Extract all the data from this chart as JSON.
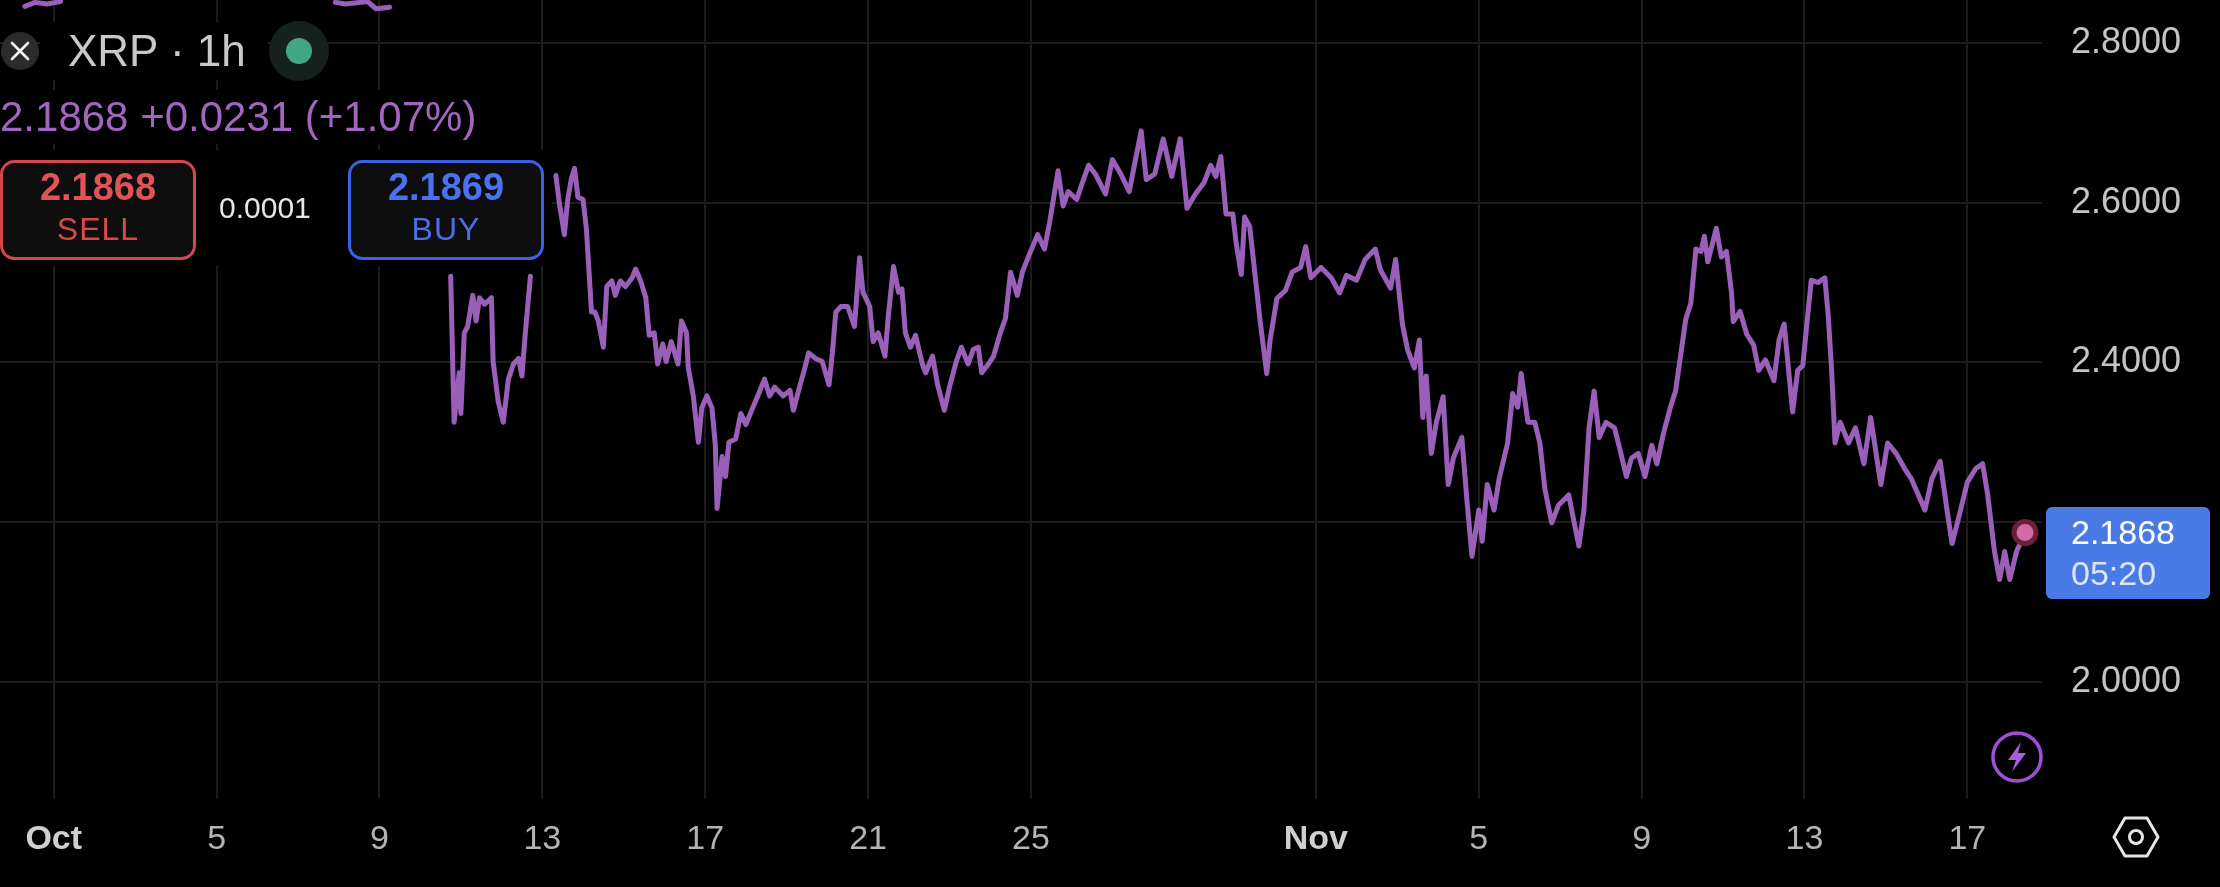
{
  "chart_data": {
    "type": "line",
    "title": "XRP · 1h",
    "subtitle": "2.1868 +0.0231 (+1.07%)",
    "x": [
      "--09-30T07:00",
      "--09-30T13:00",
      "--09-30T20:00",
      "--10-01T04:00",
      "--10-02T00:00",
      "--10-07T22:00",
      "--10-08T04:00",
      "--10-08T17:00",
      "--10-08T22:00",
      "--10-09T06:00",
      "--10-10T00:00",
      "--10-10T18:00",
      "--10-10T20:00",
      "--10-10T23:00",
      "--10-11T00:00",
      "--10-11T02:00",
      "--10-11T04:00",
      "--10-11T07:00",
      "--10-11T09:00",
      "--10-11T11:00",
      "--10-11T14:00",
      "--10-11T18:00",
      "--10-11T19:00",
      "--10-11T22:00",
      "--10-12T01:00",
      "--10-12T04:00",
      "--10-12T07:00",
      "--10-12T10:00",
      "--10-12T12:00",
      "--10-12T14:00",
      "--10-12T17:00",
      "--10-12T21:00",
      "--10-13T08:00",
      "--10-13T10:00",
      "--10-13T13:00",
      "--10-13T15:00",
      "--10-13T17:00",
      "--10-13T19:00",
      "--10-13T21:00",
      "--10-14T00:00",
      "--10-14T02:00",
      "--10-14T05:00",
      "--10-14T07:00",
      "--10-14T09:00",
      "--10-14T12:00",
      "--10-14T14:00",
      "--10-14T17:00",
      "--10-14T19:00",
      "--10-14T22:00",
      "--10-15T01:00",
      "--10-15T05:00",
      "--10-15T07:00",
      "--10-15T10:00",
      "--10-15T13:00",
      "--10-15T15:00",
      "--10-15T18:00",
      "--10-15T20:00",
      "--10-15T23:00",
      "--10-16T01:00",
      "--10-16T04:00",
      "--10-16T08:00",
      "--10-16T10:00",
      "--10-16T13:00",
      "--10-16T14:00",
      "--10-16T17:00",
      "--10-16T20:00",
      "--10-16T22:00",
      "--10-17T01:00",
      "--10-17T04:00",
      "--10-17T06:00",
      "--10-17T07:00",
      "--10-17T10:00",
      "--10-17T12:00",
      "--10-17T14:00",
      "--10-17T18:00",
      "--10-17T21:00",
      "--10-18T00:00",
      "--10-18T04:00",
      "--10-18T07:00",
      "--10-18T11:00",
      "--10-18T14:00",
      "--10-18T17:00",
      "--10-18T22:00",
      "--10-19T02:00",
      "--10-19T04:00",
      "--10-19T08:00",
      "--10-19T10:00",
      "--10-19T13:00",
      "--10-19T17:00",
      "--10-19T21:00",
      "--10-20T01:00",
      "--10-20T03:00",
      "--10-20T05:00",
      "--10-20T08:00",
      "--10-20T12:00",
      "--10-20T16:00",
      "--10-20T18:00",
      "--10-20T19:00",
      "--10-20T21:00",
      "--10-21T01:00",
      "--10-21T03:00",
      "--10-21T06:00",
      "--10-21T10:00",
      "--10-21T12:00",
      "--10-21T15:00",
      "--10-21T18:00",
      "--10-21T20:00",
      "--10-21T22:00",
      "--10-22T01:00",
      "--10-22T04:00",
      "--10-22T08:00",
      "--10-22T10:00",
      "--10-22T14:00",
      "--10-22T17:00",
      "--10-22T21:00",
      "--10-23T00:00",
      "--10-23T04:00",
      "--10-23T07:00",
      "--10-23T11:00",
      "--10-23T14:00",
      "--10-23T17:00",
      "--10-23T19:00",
      "--10-23T23:00",
      "--10-24T02:00",
      "--10-24T06:00",
      "--10-24T09:00",
      "--10-24T12:00",
      "--10-24T16:00",
      "--10-24T19:00",
      "--10-24T23:00",
      "--10-25T04:00",
      "--10-25T08:00",
      "--10-25T11:00",
      "--10-25T14:00",
      "--10-25T16:00",
      "--10-25T19:00",
      "--10-25T22:00",
      "--10-26T03:00",
      "--10-26T07:00",
      "--10-26T10:00",
      "--10-26T14:00",
      "--10-26T20:00",
      "--10-27T00:00",
      "--10-27T05:00",
      "--10-27T10:00",
      "--10-27T13:00",
      "--10-27T17:00",
      "--10-27T20:00",
      "--10-28T01:00",
      "--10-28T06:00",
      "--10-28T11:00",
      "--10-28T16:00",
      "--10-28T20:00",
      "--10-29T01:00",
      "--10-29T06:00",
      "--10-29T10:00",
      "--10-29T13:00",
      "--10-29T16:00",
      "--10-29T19:00",
      "--10-29T23:00",
      "--10-30T01:00",
      "--10-30T04:00",
      "--10-30T06:00",
      "--10-30T09:00",
      "--10-30T15:00",
      "--10-30T19:00",
      "--10-30T21:00",
      "--10-31T01:00",
      "--10-31T06:00",
      "--10-31T10:00",
      "--10-31T15:00",
      "--10-31T18:00",
      "--10-31T21:00",
      "--11-01T03:00",
      "--11-01T09:00",
      "--11-01T14:00",
      "--11-01T18:00",
      "--11-02T00:00",
      "--11-02T05:00",
      "--11-02T11:00",
      "--11-02T14:00",
      "--11-02T20:00",
      "--11-02T23:00",
      "--11-03T03:00",
      "--11-03T06:00",
      "--11-03T10:00",
      "--11-03T13:00",
      "--11-03T15:00",
      "--11-03T17:00",
      "--11-03T20:00",
      "--11-03T23:00",
      "--11-04T03:00",
      "--11-04T06:00",
      "--11-04T09:00",
      "--11-04T14:00",
      "--11-04T17:00",
      "--11-04T20:00",
      "--11-05T00:00",
      "--11-05T02:00",
      "--11-05T05:00",
      "--11-05T09:00",
      "--11-05T12:00",
      "--11-05T17:00",
      "--11-05T20:00",
      "--11-05T23:00",
      "--11-06T01:00",
      "--11-06T05:00",
      "--11-06T09:00",
      "--11-06T12:00",
      "--11-06T15:00",
      "--11-06T19:00",
      "--11-06T23:00",
      "--11-07T05:00",
      "--11-07T08:00",
      "--11-07T11:00",
      "--11-07T14:00",
      "--11-07T17:00",
      "--11-07T20:00",
      "--11-07T23:00",
      "--11-08T03:00",
      "--11-08T08:00",
      "--11-08T11:00",
      "--11-08T15:00",
      "--11-08T18:00",
      "--11-08T22:00",
      "--11-09T02:00",
      "--11-09T06:00",
      "--11-09T09:00",
      "--11-09T13:00",
      "--11-09T17:00",
      "--11-09T20:00",
      "--11-09T23:00",
      "--11-10T02:00",
      "--11-10T05:00",
      "--11-10T08:00",
      "--11-10T11:00",
      "--11-10T13:00",
      "--11-10T15:00",
      "--11-10T20:00",
      "--11-10T23:00",
      "--11-11T02:00",
      "--11-11T05:00",
      "--11-11T06:00",
      "--11-11T10:00",
      "--11-11T14:00",
      "--11-11T18:00",
      "--11-11T21:00",
      "--11-12T01:00",
      "--11-12T06:00",
      "--11-12T09:00",
      "--11-12T12:00",
      "--11-12T17:00",
      "--11-12T20:00",
      "--11-12T23:00",
      "--11-13T02:00",
      "--11-13T04:00",
      "--11-13T08:00",
      "--11-13T12:00",
      "--11-13T14:00",
      "--11-13T16:00",
      "--11-13T18:00",
      "--11-13T21:00",
      "--11-14T02:00",
      "--11-14T06:00",
      "--11-14T11:00",
      "--11-14T15:00",
      "--11-14T21:00",
      "--11-15T01:00",
      "--11-15T06:00",
      "--11-15T11:00",
      "--11-15T15:00",
      "--11-15T23:00",
      "--11-16T03:00",
      "--11-16T08:00",
      "--11-16T12:00",
      "--11-16T15:00",
      "--11-16T20:00",
      "--11-17T00:00",
      "--11-17T05:00",
      "--11-17T09:00",
      "--11-17T12:00",
      "--11-17T16:00",
      "--11-17T19:00",
      "--11-17T22:00",
      "--11-18T01:00",
      "--11-18T05:00",
      "--11-18T10:00"
    ],
    "series": [
      {
        "color": "#9a5fb8",
        "values": [
          2.846,
          2.851,
          2.849,
          2.852,
          null,
          2.851,
          2.849,
          2.852,
          2.843,
          2.845,
          null,
          2.508,
          2.325,
          2.387,
          2.336,
          2.437,
          2.445,
          2.484,
          2.452,
          2.481,
          2.473,
          2.481,
          2.401,
          2.351,
          2.325,
          2.379,
          2.398,
          2.405,
          2.383,
          2.437,
          2.508,
          null,
          2.634,
          2.6,
          2.56,
          2.604,
          2.629,
          2.643,
          2.607,
          2.604,
          2.567,
          2.463,
          2.463,
          2.452,
          2.419,
          2.495,
          2.502,
          2.484,
          2.502,
          2.495,
          2.506,
          2.517,
          2.502,
          2.481,
          2.434,
          2.437,
          2.398,
          2.423,
          2.401,
          2.426,
          2.398,
          2.452,
          2.437,
          2.394,
          2.358,
          2.3,
          2.343,
          2.358,
          2.343,
          2.296,
          2.217,
          2.282,
          2.257,
          2.3,
          2.304,
          2.336,
          2.322,
          2.343,
          2.358,
          2.379,
          2.358,
          2.369,
          2.358,
          2.365,
          2.34,
          2.372,
          2.387,
          2.412,
          2.405,
          2.401,
          2.372,
          2.412,
          2.463,
          2.47,
          2.47,
          2.445,
          2.502,
          2.531,
          2.488,
          2.47,
          2.426,
          2.437,
          2.408,
          2.459,
          2.52,
          2.488,
          2.492,
          2.437,
          2.419,
          2.434,
          2.398,
          2.387,
          2.408,
          2.372,
          2.34,
          2.369,
          2.401,
          2.419,
          2.398,
          2.416,
          2.419,
          2.387,
          2.398,
          2.408,
          2.437,
          2.455,
          2.513,
          2.484,
          2.513,
          2.535,
          2.56,
          2.542,
          2.575,
          2.614,
          2.64,
          2.596,
          2.614,
          2.604,
          2.629,
          2.647,
          2.636,
          2.611,
          2.654,
          2.636,
          2.614,
          2.647,
          2.69,
          2.629,
          2.636,
          2.68,
          2.633,
          2.68,
          2.593,
          2.611,
          2.625,
          2.647,
          2.633,
          2.658,
          2.586,
          2.586,
          2.549,
          2.51,
          2.582,
          2.57,
          2.454,
          2.386,
          2.428,
          2.48,
          2.49,
          2.513,
          2.519,
          2.545,
          2.506,
          2.519,
          2.506,
          2.487,
          2.509,
          2.503,
          2.529,
          2.542,
          2.516,
          2.493,
          2.529,
          2.448,
          2.416,
          2.393,
          2.428,
          2.331,
          2.383,
          2.286,
          2.325,
          2.357,
          2.247,
          2.28,
          2.306,
          2.228,
          2.157,
          2.215,
          2.176,
          2.247,
          2.215,
          2.254,
          2.299,
          2.361,
          2.344,
          2.386,
          2.325,
          2.325,
          2.299,
          2.241,
          2.199,
          2.221,
          2.234,
          2.202,
          2.17,
          2.215,
          2.318,
          2.364,
          2.306,
          2.325,
          2.318,
          2.293,
          2.257,
          2.28,
          2.286,
          2.257,
          2.296,
          2.273,
          2.312,
          2.344,
          2.364,
          2.409,
          2.454,
          2.474,
          2.542,
          2.539,
          2.558,
          2.526,
          2.568,
          2.532,
          2.539,
          2.487,
          2.451,
          2.464,
          2.435,
          2.422,
          2.39,
          2.403,
          2.377,
          2.428,
          2.448,
          2.338,
          2.39,
          2.396,
          2.461,
          2.503,
          2.5,
          2.506,
          2.458,
          2.39,
          2.299,
          2.325,
          2.299,
          2.318,
          2.273,
          2.331,
          2.247,
          2.299,
          2.286,
          2.267,
          2.254,
          2.215,
          2.254,
          2.276,
          2.215,
          2.173,
          2.215,
          2.25,
          2.267,
          2.273,
          2.234,
          2.163,
          2.128,
          2.163,
          2.128,
          2.163,
          2.1868
        ]
      },
      {
        "type": "scatter",
        "color": "#d36aa8",
        "marker": "circle",
        "x": [
          "--11-18T10:00"
        ],
        "values": [
          2.1868
        ]
      }
    ],
    "xlim": [
      "--09-29T16:20",
      "--11-18T20:00"
    ],
    "xticks": [
      {
        "value": "--10-01",
        "label": "Oct"
      },
      {
        "value": "--10-05",
        "label": "5"
      },
      {
        "value": "--10-09",
        "label": "9"
      },
      {
        "value": "--10-13",
        "label": "13"
      },
      {
        "value": "--10-17",
        "label": "17"
      },
      {
        "value": "--10-21",
        "label": "21"
      },
      {
        "value": "--10-25",
        "label": "25"
      },
      {
        "value": "--11-01",
        "label": "Nov"
      },
      {
        "value": "--11-05",
        "label": "5"
      },
      {
        "value": "--11-09",
        "label": "9"
      },
      {
        "value": "--11-13",
        "label": "13"
      },
      {
        "value": "--11-17",
        "label": "17"
      }
    ],
    "ylim": [
      1.853,
      2.854
    ],
    "yticks": [
      {
        "value": 2.0,
        "label": "2.0000"
      },
      {
        "value": 2.2,
        "label": null
      },
      {
        "value": 2.4,
        "label": "2.4000"
      },
      {
        "value": 2.6,
        "label": "2.6000"
      },
      {
        "value": 2.8,
        "label": "2.8000"
      }
    ],
    "grid": true,
    "annotations": [
      "2.1868",
      "SELL",
      "0.0001",
      "2.1869",
      "BUY",
      "2.1868",
      "05:20"
    ]
  }
}
